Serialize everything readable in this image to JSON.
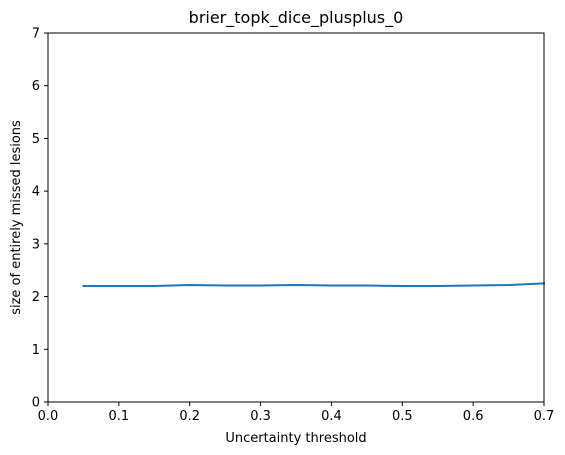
{
  "chart_data": {
    "type": "line",
    "title": "brier_topk_dice_plusplus_0",
    "xlabel": "Uncertainty threshold",
    "ylabel": "size of entirely missed lesions",
    "xlim": [
      0.0,
      0.7
    ],
    "ylim": [
      0,
      7
    ],
    "xticks": [
      0.0,
      0.1,
      0.2,
      0.3,
      0.4,
      0.5,
      0.6,
      0.7
    ],
    "xtick_labels": [
      "0.0",
      "0.1",
      "0.2",
      "0.3",
      "0.4",
      "0.5",
      "0.6",
      "0.7"
    ],
    "yticks": [
      0,
      1,
      2,
      3,
      4,
      5,
      6,
      7
    ],
    "ytick_labels": [
      "0",
      "1",
      "2",
      "3",
      "4",
      "5",
      "6",
      "7"
    ],
    "grid": false,
    "series": [
      {
        "color": "#1f77b4",
        "x": [
          0.05,
          0.1,
          0.15,
          0.2,
          0.25,
          0.3,
          0.35,
          0.4,
          0.45,
          0.5,
          0.55,
          0.6,
          0.65,
          0.7
        ],
        "y": [
          2.2,
          2.2,
          2.2,
          2.22,
          2.21,
          2.21,
          2.22,
          2.21,
          2.21,
          2.2,
          2.2,
          2.21,
          2.22,
          2.25
        ]
      }
    ]
  }
}
